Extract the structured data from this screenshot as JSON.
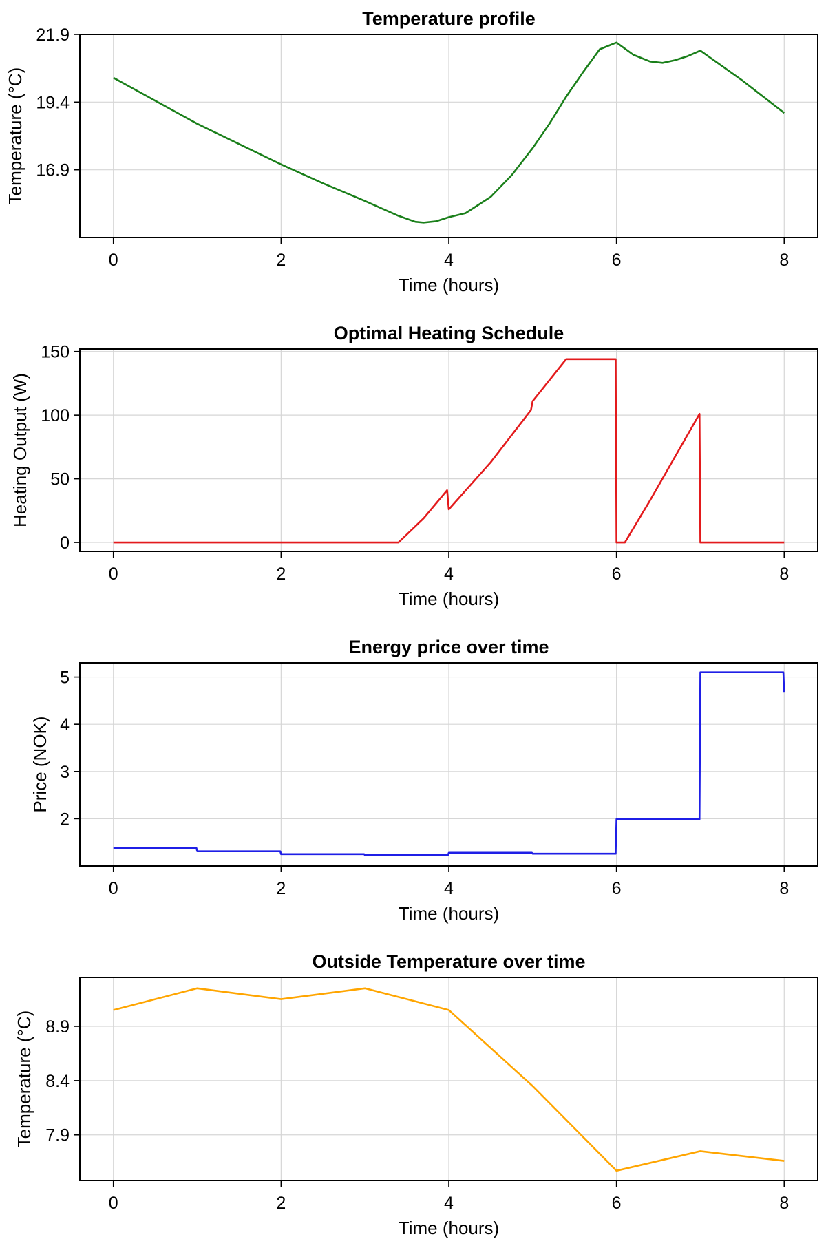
{
  "chart_data": [
    {
      "type": "line",
      "title": "Temperature profile",
      "xlabel": "Time (hours)",
      "ylabel": "Temperature (°C)",
      "xlim": [
        -0.4,
        8.4
      ],
      "ylim": [
        14.4,
        21.9
      ],
      "xticks": [
        0,
        2,
        4,
        6,
        8
      ],
      "xtick_labels": [
        "0",
        "2",
        "4",
        "6",
        "8"
      ],
      "yticks": [
        16.9,
        19.4,
        21.9
      ],
      "ytick_labels": [
        "16.9",
        "19.4",
        "21.9"
      ],
      "grid": true,
      "series": [
        {
          "color": "#1a7f1a",
          "x": [
            0,
            0.5,
            1,
            1.5,
            2,
            2.5,
            3,
            3.4,
            3.6,
            3.7,
            3.85,
            4,
            4.2,
            4.5,
            4.75,
            5,
            5.2,
            5.4,
            5.6,
            5.8,
            6,
            6.2,
            6.4,
            6.55,
            6.7,
            6.85,
            7,
            7.5,
            8
          ],
          "y": [
            20.3,
            19.45,
            18.6,
            17.85,
            17.1,
            16.4,
            15.75,
            15.2,
            14.98,
            14.95,
            15.0,
            15.15,
            15.3,
            15.9,
            16.7,
            17.7,
            18.6,
            19.6,
            20.5,
            21.35,
            21.6,
            21.15,
            20.9,
            20.85,
            20.95,
            21.1,
            21.3,
            20.2,
            19.0
          ]
        }
      ]
    },
    {
      "type": "line",
      "title": "Optimal Heating Schedule",
      "xlabel": "Time (hours)",
      "ylabel": "Heating Output (W)",
      "xlim": [
        -0.4,
        8.4
      ],
      "ylim": [
        -7,
        152
      ],
      "xticks": [
        0,
        2,
        4,
        6,
        8
      ],
      "xtick_labels": [
        "0",
        "2",
        "4",
        "6",
        "8"
      ],
      "yticks": [
        0,
        50,
        100,
        150
      ],
      "ytick_labels": [
        "0",
        "50",
        "100",
        "150"
      ],
      "grid": true,
      "series": [
        {
          "color": "#e31a1c",
          "x": [
            0,
            3.4,
            3.7,
            3.98,
            4.0,
            4.5,
            4.98,
            5.0,
            5.4,
            5.99,
            6.0,
            6.1,
            6.4,
            6.99,
            7.0,
            8
          ],
          "y": [
            0,
            0,
            19,
            41,
            26,
            63,
            104,
            111,
            144,
            144,
            0,
            0,
            33,
            101,
            0,
            0
          ]
        }
      ]
    },
    {
      "type": "line",
      "title": "Energy price over time",
      "xlabel": "Time (hours)",
      "ylabel": "Price (NOK)",
      "xlim": [
        -0.4,
        8.4
      ],
      "ylim": [
        1.0,
        5.3
      ],
      "xticks": [
        0,
        2,
        4,
        6,
        8
      ],
      "xtick_labels": [
        "0",
        "2",
        "4",
        "6",
        "8"
      ],
      "yticks": [
        2,
        3,
        4,
        5
      ],
      "ytick_labels": [
        "2",
        "3",
        "4",
        "5"
      ],
      "grid": true,
      "series": [
        {
          "color": "#1f1fe6",
          "x": [
            0,
            0.99,
            1.0,
            1.99,
            2.0,
            2.99,
            3.0,
            3.99,
            4.0,
            4.99,
            5.0,
            5.99,
            6.0,
            6.99,
            7.0,
            7.99,
            8.0
          ],
          "y": [
            1.38,
            1.38,
            1.31,
            1.31,
            1.25,
            1.25,
            1.23,
            1.23,
            1.28,
            1.28,
            1.26,
            1.26,
            1.99,
            1.99,
            5.1,
            5.1,
            4.67
          ]
        }
      ]
    },
    {
      "type": "line",
      "title": "Outside Temperature over time",
      "xlabel": "Time (hours)",
      "ylabel": "Temperature (°C)",
      "xlim": [
        -0.4,
        8.4
      ],
      "ylim": [
        7.48,
        9.35
      ],
      "xticks": [
        0,
        2,
        4,
        6,
        8
      ],
      "xtick_labels": [
        "0",
        "2",
        "4",
        "6",
        "8"
      ],
      "yticks": [
        7.9,
        8.4,
        8.9
      ],
      "ytick_labels": [
        "7.9",
        "8.4",
        "8.9"
      ],
      "grid": true,
      "series": [
        {
          "color": "#ffa500",
          "x": [
            0,
            1,
            2,
            3,
            4,
            5,
            6,
            7,
            8
          ],
          "y": [
            9.05,
            9.25,
            9.15,
            9.25,
            9.05,
            8.35,
            7.57,
            7.75,
            7.66
          ]
        }
      ]
    }
  ]
}
